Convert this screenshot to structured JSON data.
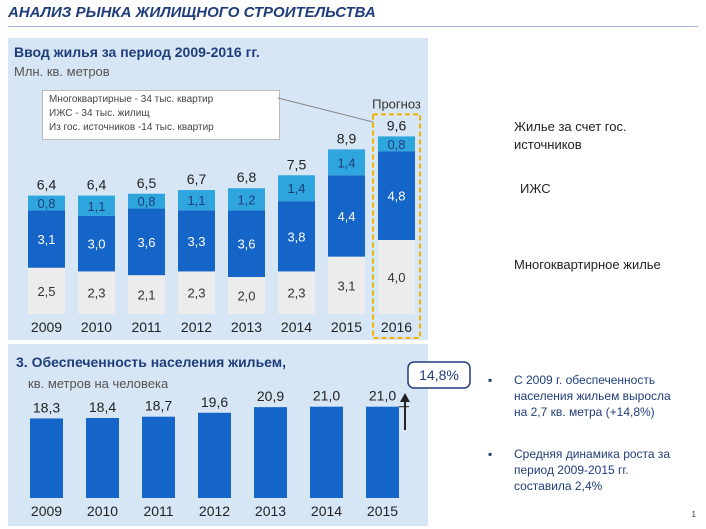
{
  "page": {
    "title": "АНАЛИЗ РЫНКА ЖИЛИЩНОГО СТРОИТЕЛЬСТВА",
    "page_number": "1"
  },
  "colors": {
    "dark_blue": "#1565c8",
    "light_blue": "#2ea6dd",
    "light_gray": "#ececec",
    "panel_bg": "#d6e6f5",
    "forecast_border": "#f0b400"
  },
  "top_panel": {
    "title": "Ввод жилья за период 2009-2016 гг.",
    "subtitle": "Млн. кв. метров",
    "legend_lines": [
      "Многоквартирные - 34 тыс. квартир",
      "ИЖС - 34 тыс. жилищ",
      "Из гос. источников -14 тыс. квартир"
    ],
    "forecast_label": "Прогноз",
    "side_labels": {
      "gov": "Жилье за счет гос. источников",
      "izhs": "ИЖС",
      "multi": "Многоквартирное жилье"
    }
  },
  "bottom_panel": {
    "title": "3. Обеспеченность населения жильем,",
    "subtitle": "кв. метров на человека",
    "growth_label": "14,8%",
    "bullets": [
      "С 2009 г. обеспеченность населения жильем выросла на 2,7 кв. метра (+14,8%)",
      "Средняя динамика роста за период 2009-2015 гг. составила 2,4%"
    ]
  },
  "chart_data": [
    {
      "type": "bar",
      "stacked": true,
      "title": "Ввод жилья за период 2009-2016 гг.",
      "ylabel": "Млн. кв. метров",
      "categories": [
        "2009",
        "2010",
        "2011",
        "2012",
        "2013",
        "2014",
        "2015",
        "2016"
      ],
      "series": [
        {
          "name": "Многоквартирное жилье",
          "values": [
            2.5,
            2.3,
            2.1,
            2.3,
            2.0,
            2.3,
            3.1,
            4.0
          ],
          "labels": [
            "2,5",
            "2,3",
            "2,1",
            "2,3",
            "2,0",
            "2,3",
            "3,1",
            "4,0"
          ]
        },
        {
          "name": "ИЖС",
          "values": [
            3.1,
            3.0,
            3.6,
            3.3,
            3.6,
            3.8,
            4.4,
            4.8
          ],
          "labels": [
            "3,1",
            "3,0",
            "3,6",
            "3,3",
            "3,6",
            "3,8",
            "4,4",
            "4,8"
          ]
        },
        {
          "name": "Жилье за счет гос. источников",
          "values": [
            0.8,
            1.1,
            0.8,
            1.1,
            1.2,
            1.4,
            1.4,
            0.8
          ],
          "labels": [
            "0,8",
            "1,1",
            "0,8",
            "1,1",
            "1,2",
            "1,4",
            "1,4",
            "0,8"
          ]
        }
      ],
      "totals": [
        6.4,
        6.4,
        6.5,
        6.7,
        6.8,
        7.5,
        8.9,
        9.6
      ],
      "total_labels": [
        "6,4",
        "6,4",
        "6,5",
        "6,7",
        "6,8",
        "7,5",
        "8,9",
        "9,6"
      ],
      "forecast_categories": [
        "2016"
      ],
      "ylim": [
        0,
        10
      ]
    },
    {
      "type": "bar",
      "title": "3. Обеспеченность населения жильем,",
      "ylabel": "кв. метров на человека",
      "categories": [
        "2009",
        "2010",
        "2011",
        "2012",
        "2013",
        "2014",
        "2015"
      ],
      "values": [
        18.3,
        18.4,
        18.7,
        19.6,
        20.9,
        21.0,
        21.0
      ],
      "labels": [
        "18,3",
        "18,4",
        "18,7",
        "19,6",
        "20,9",
        "21,0",
        "21,0"
      ],
      "ylim": [
        0,
        23
      ]
    }
  ]
}
